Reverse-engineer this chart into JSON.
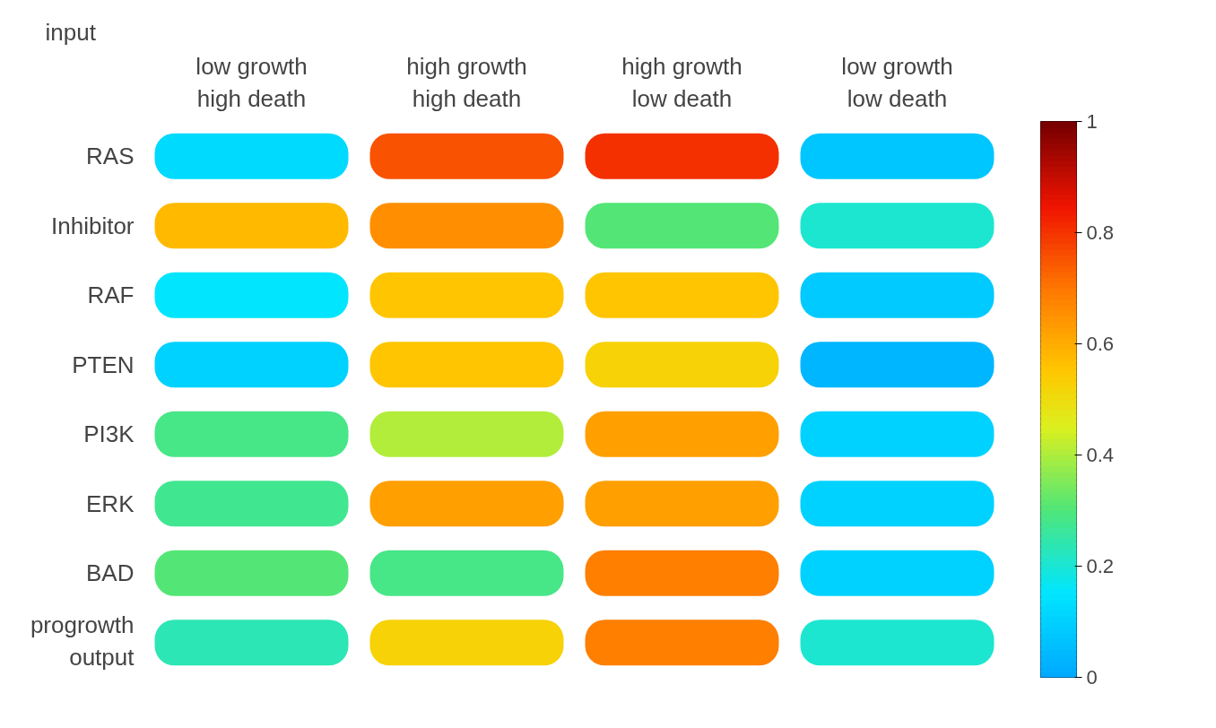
{
  "chart_data": {
    "type": "heatmap",
    "categories": [
      "low growth\nhigh death",
      "high growth\nhigh death",
      "high growth\nlow death",
      "low growth\nlow death"
    ],
    "y_categories": [
      "RAS",
      "Inhibitor",
      "RAF",
      "PTEN",
      "PI3K",
      "ERK",
      "BAD",
      "progrowth\noutput"
    ],
    "cells": [
      [
        0.12,
        0.75,
        0.8,
        0.07
      ],
      [
        0.58,
        0.65,
        0.3,
        0.2
      ],
      [
        0.15,
        0.55,
        0.55,
        0.08
      ],
      [
        0.1,
        0.55,
        0.52,
        0.03
      ],
      [
        0.28,
        0.4,
        0.62,
        0.1
      ],
      [
        0.27,
        0.62,
        0.62,
        0.1
      ],
      [
        0.3,
        0.28,
        0.68,
        0.1
      ],
      [
        0.23,
        0.52,
        0.68,
        0.2
      ]
    ],
    "clim": [
      0,
      1
    ],
    "cticks": [
      0,
      0.2,
      0.4,
      0.6,
      0.8,
      1
    ],
    "annotations": [
      "input"
    ],
    "grid": false
  }
}
